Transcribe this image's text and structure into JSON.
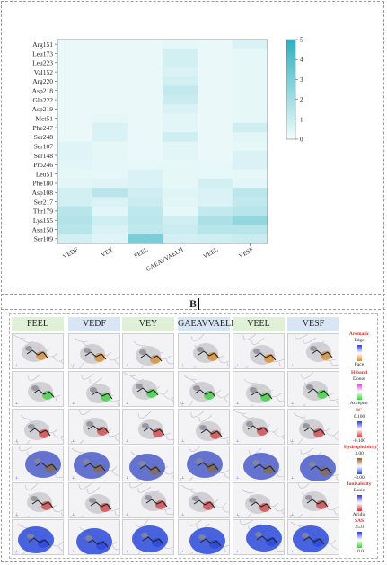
{
  "chart_data": {
    "type": "heatmap",
    "x_categories": [
      "VEDF",
      "VEY",
      "FEEL",
      "GAEAVVAELH",
      "VEEL",
      "VESF"
    ],
    "y_categories": [
      "Arg151",
      "Leu173",
      "Leu223",
      "Val152",
      "Arg220",
      "Asp218",
      "Gln222",
      "Asp219",
      "Met51",
      "Phe247",
      "Ser248",
      "Ser107",
      "Ser148",
      "Pro246",
      "Leu51",
      "Phe180",
      "Asp108",
      "Ser217",
      "Thr179",
      "Lys155",
      "Asn150",
      "Ser109"
    ],
    "values": [
      [
        0.2,
        0.2,
        0.2,
        0.3,
        0.2,
        0.6
      ],
      [
        0.2,
        0.2,
        0.2,
        0.8,
        0.2,
        0.3
      ],
      [
        0.2,
        0.2,
        0.2,
        0.8,
        0.2,
        0.3
      ],
      [
        0.2,
        0.2,
        0.2,
        0.6,
        0.2,
        0.3
      ],
      [
        0.2,
        0.2,
        0.2,
        0.8,
        0.2,
        0.3
      ],
      [
        0.2,
        0.2,
        0.2,
        1.2,
        0.2,
        0.3
      ],
      [
        0.2,
        0.2,
        0.2,
        1.0,
        0.2,
        0.3
      ],
      [
        0.2,
        0.2,
        0.2,
        0.6,
        0.2,
        0.3
      ],
      [
        0.2,
        0.3,
        0.2,
        0.4,
        0.2,
        0.3
      ],
      [
        0.2,
        0.6,
        0.2,
        0.4,
        0.2,
        0.9
      ],
      [
        0.2,
        0.6,
        0.2,
        0.9,
        0.2,
        0.4
      ],
      [
        0.5,
        0.3,
        0.2,
        0.4,
        0.2,
        0.3
      ],
      [
        0.5,
        0.3,
        0.2,
        0.4,
        0.2,
        0.6
      ],
      [
        0.4,
        0.3,
        0.3,
        0.3,
        0.3,
        0.6
      ],
      [
        0.3,
        0.3,
        0.6,
        0.3,
        0.3,
        0.3
      ],
      [
        0.4,
        0.5,
        0.6,
        0.3,
        0.8,
        0.4
      ],
      [
        0.8,
        1.5,
        0.9,
        0.5,
        0.6,
        1.4
      ],
      [
        0.8,
        0.6,
        1.0,
        0.4,
        0.6,
        1.2
      ],
      [
        1.5,
        0.4,
        1.3,
        0.3,
        1.2,
        1.5
      ],
      [
        1.6,
        0.9,
        1.4,
        0.9,
        1.8,
        2.4
      ],
      [
        1.5,
        0.6,
        1.3,
        1.0,
        1.5,
        1.5
      ],
      [
        0.8,
        0.5,
        3.0,
        0.8,
        0.9,
        1.0
      ]
    ],
    "colorbar": {
      "min": 0,
      "max": 5,
      "ticks": [
        "0",
        "1",
        "2",
        "3",
        "4",
        "5"
      ],
      "low_color": "#f2fbfc",
      "high_color": "#2cb0be"
    }
  },
  "caption": "B",
  "panel_b": {
    "columns": [
      {
        "label": "FEEL",
        "color": "#dff0d6"
      },
      {
        "label": "VEDF",
        "color": "#d7e5f4"
      },
      {
        "label": "VEY",
        "color": "#dff0d6"
      },
      {
        "label": "GAEAVVAELH",
        "color": "#d7e5f4"
      },
      {
        "label": "VEEL",
        "color": "#dff0d6"
      },
      {
        "label": "VESF",
        "color": "#d7e5f4"
      }
    ],
    "rows": [
      {
        "property": "aromatic",
        "accent": "#d98a2e"
      },
      {
        "property": "h-bond",
        "accent": "#c23ac9"
      },
      {
        "property": "ionizability",
        "accent": "#d04040"
      },
      {
        "property": "hydrophobicity",
        "accent": "#8a6a4a"
      },
      {
        "property": "interpolated-charge",
        "accent": "#d04040"
      },
      {
        "property": "sas",
        "accent": "#2a48d8"
      }
    ],
    "legend": [
      {
        "title": "Aromatic",
        "top": "Edge",
        "bottom": "Face",
        "top_color": "#2a3bd0",
        "bottom_color": "#e08a2a"
      },
      {
        "title": "H-bond",
        "top": "Donor",
        "bottom": "Acceptor",
        "top_color": "#d23ad6",
        "bottom_color": "#3ad23a"
      },
      {
        "title": "IC",
        "top": "0.100",
        "bottom": "-0.100",
        "top_color": "#2a3bd0",
        "bottom_color": "#d03030"
      },
      {
        "title": "Hydrophobicity",
        "top": "3.00",
        "bottom": "-3.00",
        "top_color": "#8a5a2a",
        "bottom_color": "#2a48d8"
      },
      {
        "title": "Ionizability",
        "top": "Basic",
        "bottom": "Acidic",
        "top_color": "#2a3bd0",
        "bottom_color": "#d03030"
      },
      {
        "title": "SAS",
        "top": "25.0",
        "bottom": "10.0",
        "top_color": "#2a3bd0",
        "bottom_color": "#3ad23a"
      }
    ]
  }
}
